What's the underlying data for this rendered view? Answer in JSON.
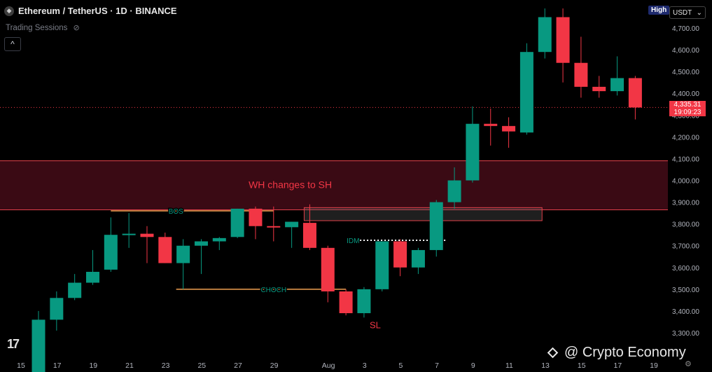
{
  "header": {
    "symbol": "Ethereum / TetherUS · 1D · BINANCE",
    "sessions_label": "Trading Sessions"
  },
  "controls": {
    "high_badge": "High",
    "currency": "USDT",
    "collapse": "^"
  },
  "watermark": "@ Crypto Economy",
  "price_label": {
    "price": "4,335.31",
    "countdown": "19:09:23"
  },
  "colors": {
    "up": "#089981",
    "down": "#f23645",
    "zone": "#3a0a14",
    "zone_border": "#e0404a",
    "orange": "#f0a050"
  },
  "chart_data": {
    "type": "candlestick",
    "y_ticks": [
      3300,
      3400,
      3500,
      3600,
      3700,
      3800,
      3900,
      4000,
      4100,
      4200,
      4300,
      4400,
      4500,
      4600,
      4700
    ],
    "x_ticks": [
      {
        "label": "15",
        "i": 0
      },
      {
        "label": "17",
        "i": 2
      },
      {
        "label": "19",
        "i": 4
      },
      {
        "label": "21",
        "i": 6
      },
      {
        "label": "23",
        "i": 8
      },
      {
        "label": "25",
        "i": 10
      },
      {
        "label": "27",
        "i": 12
      },
      {
        "label": "29",
        "i": 14
      },
      {
        "label": "Aug",
        "i": 17
      },
      {
        "label": "3",
        "i": 19
      },
      {
        "label": "5",
        "i": 21
      },
      {
        "label": "7",
        "i": 23
      },
      {
        "label": "9",
        "i": 25
      },
      {
        "label": "11",
        "i": 27
      },
      {
        "label": "13",
        "i": 29
      },
      {
        "label": "15",
        "i": 31
      },
      {
        "label": "17",
        "i": 33
      },
      {
        "label": "19",
        "i": 35
      }
    ],
    "candles": [
      {
        "o": 3070,
        "h": 3400,
        "l": 3060,
        "c": 3360
      },
      {
        "o": 3360,
        "h": 3490,
        "l": 3310,
        "c": 3460
      },
      {
        "o": 3460,
        "h": 3570,
        "l": 3450,
        "c": 3530
      },
      {
        "o": 3530,
        "h": 3680,
        "l": 3520,
        "c": 3580
      },
      {
        "o": 3590,
        "h": 3830,
        "l": 3580,
        "c": 3750
      },
      {
        "o": 3750,
        "h": 3850,
        "l": 3690,
        "c": 3755
      },
      {
        "o": 3755,
        "h": 3790,
        "l": 3620,
        "c": 3740
      },
      {
        "o": 3740,
        "h": 3760,
        "l": 3620,
        "c": 3620
      },
      {
        "o": 3620,
        "h": 3730,
        "l": 3500,
        "c": 3700
      },
      {
        "o": 3700,
        "h": 3730,
        "l": 3570,
        "c": 3720
      },
      {
        "o": 3720,
        "h": 3740,
        "l": 3680,
        "c": 3735
      },
      {
        "o": 3740,
        "h": 3870,
        "l": 3735,
        "c": 3870
      },
      {
        "o": 3870,
        "h": 3880,
        "l": 3730,
        "c": 3790
      },
      {
        "o": 3790,
        "h": 3880,
        "l": 3720,
        "c": 3785
      },
      {
        "o": 3785,
        "h": 3810,
        "l": 3690,
        "c": 3810
      },
      {
        "o": 3805,
        "h": 3890,
        "l": 3680,
        "c": 3690
      },
      {
        "o": 3690,
        "h": 3700,
        "l": 3440,
        "c": 3490
      },
      {
        "o": 3490,
        "h": 3500,
        "l": 3380,
        "c": 3390
      },
      {
        "o": 3390,
        "h": 3510,
        "l": 3370,
        "c": 3500
      },
      {
        "o": 3500,
        "h": 3720,
        "l": 3490,
        "c": 3720
      },
      {
        "o": 3720,
        "h": 3730,
        "l": 3560,
        "c": 3600
      },
      {
        "o": 3600,
        "h": 3690,
        "l": 3570,
        "c": 3680
      },
      {
        "o": 3680,
        "h": 3910,
        "l": 3650,
        "c": 3900
      },
      {
        "o": 3900,
        "h": 4060,
        "l": 3870,
        "c": 4000
      },
      {
        "o": 4000,
        "h": 4340,
        "l": 3990,
        "c": 4260
      },
      {
        "o": 4260,
        "h": 4330,
        "l": 4160,
        "c": 4250
      },
      {
        "o": 4250,
        "h": 4290,
        "l": 4150,
        "c": 4225
      },
      {
        "o": 4220,
        "h": 4630,
        "l": 4210,
        "c": 4590
      },
      {
        "o": 4590,
        "h": 4790,
        "l": 4560,
        "c": 4750
      },
      {
        "o": 4750,
        "h": 4790,
        "l": 4450,
        "c": 4540
      },
      {
        "o": 4540,
        "h": 4660,
        "l": 4380,
        "c": 4430
      },
      {
        "o": 4430,
        "h": 4480,
        "l": 4380,
        "c": 4410
      },
      {
        "o": 4410,
        "h": 4570,
        "l": 4390,
        "c": 4470
      },
      {
        "o": 4470,
        "h": 4480,
        "l": 4280,
        "c": 4335
      }
    ],
    "annotations": {
      "zone": {
        "top": 4090,
        "bottom": 3865
      },
      "wh_label": "WH changes to SH",
      "bos": {
        "label": "BOS",
        "price": 3860,
        "from_i": 4,
        "to_i": 13
      },
      "choch": {
        "label": "CHOCH",
        "price": 3500,
        "from_i": 8,
        "to_i": 17
      },
      "idm": {
        "label": "IDM",
        "price": 3725,
        "from_i": 17,
        "to_i": 23
      },
      "ob_box": {
        "top": 3875,
        "bottom": 3815,
        "from_i": 15,
        "to_i": 28
      },
      "sl_label": "SL",
      "sl_price": 3360,
      "sl_i": 18,
      "current_price": 4335.31
    }
  }
}
